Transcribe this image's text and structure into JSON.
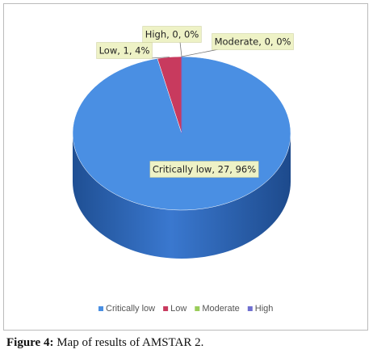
{
  "chart_data": {
    "type": "pie3d",
    "categories": [
      "Critically low",
      "Low",
      "Moderate",
      "High"
    ],
    "values": [
      27,
      1,
      0,
      0
    ],
    "value_labels": [
      "Critically low, 27, 96%",
      "Low, 1, 4%",
      "Moderate, 0, 0%",
      "High, 0, 0%"
    ],
    "colors": [
      "#4a8fe3",
      "#c83a5e",
      "#9acd5a",
      "#6f6fd0"
    ],
    "legend": "bottom"
  },
  "caption_label": "Figure 4:",
  "caption": "Map of results of AMSTAR 2."
}
